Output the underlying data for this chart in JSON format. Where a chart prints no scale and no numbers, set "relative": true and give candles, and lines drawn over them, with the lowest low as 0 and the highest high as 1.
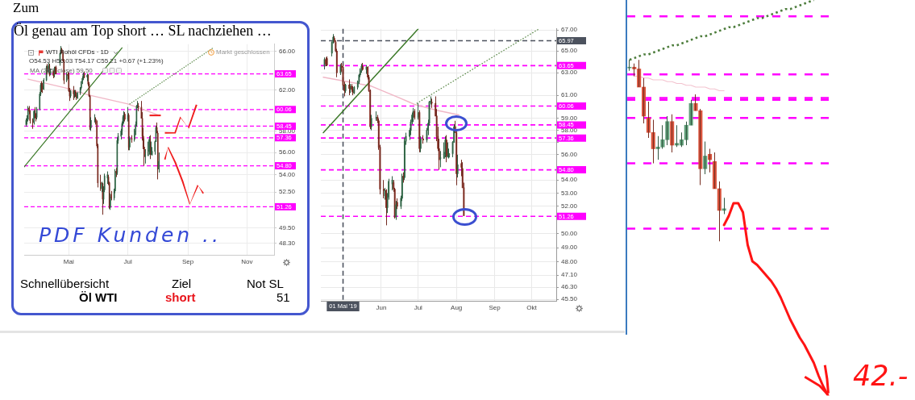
{
  "chart_data": [
    {
      "type": "candlestick",
      "title": "Öl genau am Top short … SL nachziehen …",
      "subtitle": "WTI Rohöl CFDs · 1D",
      "x": [
        "2019-03-18",
        "2019-03-19",
        "2019-03-20",
        "2019-03-21",
        "2019-03-22",
        "2019-03-25",
        "2019-03-26",
        "2019-03-27",
        "2019-03-28",
        "2019-03-29",
        "2019-04-01",
        "2019-04-02",
        "2019-04-03",
        "2019-04-04",
        "2019-04-05",
        "2019-04-08",
        "2019-04-09",
        "2019-04-10",
        "2019-04-11",
        "2019-04-12",
        "2019-04-15",
        "2019-04-16",
        "2019-04-17",
        "2019-04-18",
        "2019-04-22",
        "2019-04-23",
        "2019-04-24",
        "2019-04-25",
        "2019-04-26",
        "2019-04-29",
        "2019-04-30",
        "2019-05-01",
        "2019-05-02",
        "2019-05-03",
        "2019-05-06",
        "2019-05-07",
        "2019-05-08",
        "2019-05-09",
        "2019-05-10",
        "2019-05-13",
        "2019-05-14",
        "2019-05-15",
        "2019-05-16",
        "2019-05-17",
        "2019-05-20",
        "2019-05-21",
        "2019-05-22",
        "2019-05-23",
        "2019-05-24",
        "2019-05-28",
        "2019-05-29",
        "2019-05-30",
        "2019-05-31",
        "2019-06-03",
        "2019-06-04",
        "2019-06-05",
        "2019-06-06",
        "2019-06-07",
        "2019-06-10",
        "2019-06-11",
        "2019-06-12",
        "2019-06-13",
        "2019-06-14",
        "2019-06-17",
        "2019-06-18",
        "2019-06-19",
        "2019-06-20",
        "2019-06-21",
        "2019-06-24",
        "2019-06-25",
        "2019-06-26",
        "2019-06-27",
        "2019-06-28",
        "2019-07-01",
        "2019-07-02",
        "2019-07-03",
        "2019-07-05",
        "2019-07-08",
        "2019-07-09",
        "2019-07-10",
        "2019-07-11",
        "2019-07-12",
        "2019-07-15",
        "2019-07-16",
        "2019-07-17",
        "2019-07-18",
        "2019-07-19",
        "2019-07-22",
        "2019-07-23",
        "2019-07-24",
        "2019-07-25",
        "2019-07-26",
        "2019-07-29",
        "2019-07-30",
        "2019-07-31",
        "2019-08-01",
        "2019-08-02"
      ],
      "ohlc": [
        [
          58.6,
          59.2,
          58.4,
          59.0
        ],
        [
          59.0,
          59.5,
          58.6,
          59.1
        ],
        [
          59.1,
          60.4,
          58.9,
          60.2
        ],
        [
          60.2,
          60.4,
          59.6,
          59.9
        ],
        [
          59.9,
          60.0,
          58.7,
          59.0
        ],
        [
          59.0,
          59.2,
          58.2,
          58.8
        ],
        [
          58.8,
          60.0,
          58.6,
          59.9
        ],
        [
          59.9,
          60.3,
          59.2,
          59.4
        ],
        [
          59.4,
          59.7,
          58.9,
          59.3
        ],
        [
          59.3,
          60.3,
          59.1,
          60.1
        ],
        [
          60.1,
          61.8,
          60.0,
          61.6
        ],
        [
          61.6,
          62.7,
          61.4,
          62.5
        ],
        [
          62.5,
          62.9,
          61.8,
          62.4
        ],
        [
          62.4,
          62.7,
          61.7,
          62.1
        ],
        [
          62.1,
          63.2,
          62.0,
          63.0
        ],
        [
          63.0,
          64.5,
          62.9,
          64.3
        ],
        [
          64.3,
          64.7,
          63.6,
          63.9
        ],
        [
          63.9,
          64.8,
          63.7,
          64.5
        ],
        [
          64.5,
          64.7,
          63.4,
          63.6
        ],
        [
          63.6,
          64.2,
          63.5,
          63.9
        ],
        [
          63.9,
          64.0,
          63.2,
          63.5
        ],
        [
          63.6,
          64.4,
          63.3,
          64.2
        ],
        [
          64.2,
          64.4,
          63.6,
          63.8
        ],
        [
          64.3,
          64.5,
          63.6,
          63.7
        ],
        [
          64.8,
          65.9,
          64.5,
          65.8
        ],
        [
          65.8,
          66.6,
          65.7,
          66.3
        ],
        [
          66.2,
          66.4,
          65.8,
          65.9
        ],
        [
          65.8,
          66.0,
          64.9,
          65.0
        ],
        [
          65.0,
          65.2,
          62.6,
          63.0
        ],
        [
          63.0,
          63.8,
          62.8,
          63.6
        ],
        [
          63.6,
          63.9,
          63.1,
          63.5
        ],
        [
          63.5,
          63.8,
          61.8,
          61.9
        ],
        [
          61.9,
          62.2,
          60.9,
          61.4
        ],
        [
          61.4,
          62.0,
          61.2,
          61.9
        ],
        [
          61.9,
          62.4,
          61.0,
          61.6
        ],
        [
          61.6,
          62.0,
          61.2,
          61.8
        ],
        [
          61.8,
          62.0,
          61.3,
          61.5
        ],
        [
          61.5,
          61.8,
          61.0,
          61.2
        ],
        [
          61.2,
          61.8,
          61.1,
          61.7
        ],
        [
          61.7,
          62.3,
          61.5,
          62.2
        ],
        [
          62.2,
          62.9,
          62.0,
          62.8
        ],
        [
          62.8,
          63.4,
          62.6,
          63.2
        ],
        [
          63.2,
          63.8,
          63.0,
          63.6
        ],
        [
          63.6,
          63.9,
          63.2,
          63.3
        ],
        [
          63.3,
          63.7,
          62.9,
          63.5
        ],
        [
          63.5,
          63.6,
          62.4,
          62.6
        ],
        [
          62.6,
          62.8,
          61.3,
          61.4
        ],
        [
          61.4,
          61.5,
          58.1,
          58.3
        ],
        [
          58.3,
          59.3,
          58.0,
          59.0
        ],
        [
          59.0,
          59.6,
          58.8,
          59.1
        ],
        [
          59.1,
          59.3,
          58.6,
          58.8
        ],
        [
          58.8,
          59.0,
          56.4,
          56.6
        ],
        [
          56.6,
          56.8,
          52.9,
          53.3
        ],
        [
          53.3,
          54.0,
          52.6,
          53.2
        ],
        [
          52.8,
          53.4,
          52.5,
          53.2
        ],
        [
          53.2,
          53.3,
          50.6,
          51.9
        ],
        [
          51.9,
          53.0,
          51.5,
          52.7
        ],
        [
          52.7,
          54.1,
          52.5,
          53.9
        ],
        [
          53.7,
          54.3,
          53.2,
          54.0
        ],
        [
          53.8,
          54.0,
          53.1,
          53.3
        ],
        [
          53.3,
          53.4,
          51.1,
          51.2
        ],
        [
          51.2,
          52.4,
          51.0,
          52.1
        ],
        [
          52.3,
          52.6,
          51.8,
          52.0
        ],
        [
          52.0,
          52.8,
          51.8,
          52.6
        ],
        [
          52.6,
          54.5,
          52.4,
          54.3
        ],
        [
          54.3,
          54.6,
          53.8,
          54.2
        ],
        [
          54.2,
          57.4,
          54.0,
          57.1
        ],
        [
          57.1,
          57.8,
          56.8,
          57.5
        ],
        [
          57.5,
          58.2,
          57.2,
          58.0
        ],
        [
          58.0,
          58.9,
          57.6,
          58.7
        ],
        [
          58.7,
          59.5,
          58.5,
          59.3
        ],
        [
          59.1,
          59.9,
          58.7,
          59.6
        ],
        [
          59.6,
          59.8,
          58.9,
          59.1
        ],
        [
          59.1,
          60.3,
          58.9,
          59.5
        ],
        [
          59.5,
          59.7,
          56.2,
          56.5
        ],
        [
          56.5,
          57.5,
          56.2,
          57.3
        ],
        [
          57.3,
          57.6,
          56.9,
          57.2
        ],
        [
          57.2,
          58.2,
          57.0,
          58.0
        ],
        [
          58.0,
          58.9,
          57.6,
          58.6
        ],
        [
          58.6,
          60.5,
          58.4,
          60.4
        ],
        [
          60.4,
          60.9,
          60.2,
          60.4
        ],
        [
          60.4,
          60.7,
          59.9,
          60.3
        ],
        [
          60.3,
          60.9,
          59.2,
          59.2
        ],
        [
          59.2,
          59.8,
          57.1,
          57.5
        ],
        [
          57.5,
          58.3,
          56.3,
          56.5
        ],
        [
          56.5,
          57.3,
          54.8,
          55.6
        ],
        [
          55.7,
          56.3,
          55.0,
          55.7
        ],
        [
          55.7,
          57.0,
          55.7,
          56.2
        ],
        [
          56.1,
          57.5,
          55.8,
          57.2
        ],
        [
          57.2,
          57.6,
          55.4,
          55.9
        ],
        [
          55.8,
          57.0,
          55.8,
          55.9
        ],
        [
          55.8,
          56.5,
          55.7,
          56.1
        ],
        [
          56.1,
          57.1,
          55.8,
          57.0
        ],
        [
          57.0,
          58.5,
          57.0,
          58.3
        ],
        [
          58.3,
          58.8,
          57.8,
          57.8
        ],
        [
          57.8,
          58.0,
          53.6,
          54.5
        ],
        [
          54.5,
          56.0,
          54.2,
          55.2
        ]
      ],
      "colors": [
        "#3b7552",
        "#3b7552",
        "#3b7552",
        "#8e3428",
        "#8e3428",
        "#8e3428",
        "#3b7552",
        "#8e3428",
        "#8e3428",
        "#3b7552",
        "#3b7552",
        "#3b7552",
        "#8e3428",
        "#8e3428",
        "#3b7552",
        "#3b7552",
        "#8e3428",
        "#3b7552",
        "#8e3428",
        "#3b7552",
        "#8e3428",
        "#3b7552",
        "#8e3428",
        "#8e3428",
        "#3b7552",
        "#3b7552",
        "#8e3428",
        "#8e3428",
        "#8e3428",
        "#3b7552",
        "#8e3428",
        "#8e3428",
        "#8e3428",
        "#3b7552",
        "#8e3428",
        "#3b7552",
        "#8e3428",
        "#8e3428",
        "#3b7552",
        "#3b7552",
        "#3b7552",
        "#3b7552",
        "#3b7552",
        "#8e3428",
        "#3b7552",
        "#8e3428",
        "#8e3428",
        "#8e3428",
        "#3b7552",
        "#3b7552",
        "#8e3428",
        "#8e3428",
        "#8e3428",
        "#8e3428",
        "#3b7552",
        "#8e3428",
        "#3b7552",
        "#3b7552",
        "#3b7552",
        "#8e3428",
        "#8e3428",
        "#3b7552",
        "#8e3428",
        "#3b7552",
        "#3b7552",
        "#8e3428",
        "#3b7552",
        "#3b7552",
        "#3b7552",
        "#3b7552",
        "#3b7552",
        "#3b7552",
        "#8e3428",
        "#3b7552",
        "#8e3428",
        "#3b7552",
        "#8e3428",
        "#3b7552",
        "#3b7552",
        "#3b7552",
        "#3b7552",
        "#8e3428",
        "#8e3428",
        "#8e3428",
        "#8e3428",
        "#8e3428",
        "#3b7552",
        "#3b7552",
        "#3b7552",
        "#8e3428",
        "#3b7552",
        "#3b7552",
        "#3b7552",
        "#3b7552",
        "#8e3428",
        "#8e3428",
        "#3b7552"
      ],
      "series": [
        {
          "type": "line",
          "color": "#3d7a2a",
          "x": [
            "2019-03-16",
            "2019-06-25"
          ],
          "values": [
            54.7,
            66.4
          ]
        },
        {
          "type": "line",
          "color": "#5c8a4a",
          "line_style": "dotted",
          "x": [
            "2019-07-03",
            "2019-09-27"
          ],
          "values": [
            60.6,
            66.4
          ]
        },
        {
          "type": "line",
          "color": "#f0b7c6",
          "x": [
            "2019-03-20",
            "2019-04-28",
            "2019-05-21",
            "2019-07-01",
            "2019-08-02"
          ],
          "values": [
            63.1,
            62.2,
            61.5,
            60.6,
            59.5
          ]
        }
      ],
      "ref_lines": [
        {
          "axis": "y",
          "value": 63.65,
          "label": "63.65",
          "color": "#ff00ff",
          "line_style": "dashed"
        },
        {
          "axis": "y",
          "value": 60.06,
          "label": "60.06",
          "color": "#ff00ff",
          "line_style": "dashed"
        },
        {
          "axis": "y",
          "value": 58.45,
          "label": "58.45",
          "color": "#ff00ff",
          "line_style": "dashed"
        },
        {
          "axis": "y",
          "value": 57.36,
          "label": "57.36",
          "color": "#ff00ff",
          "line_style": "dashed"
        },
        {
          "axis": "y",
          "value": 54.8,
          "label": "54.80",
          "color": "#ff00ff",
          "line_style": "dashed"
        },
        {
          "axis": "y",
          "value": 51.26,
          "label": "51.26",
          "color": "#ff00ff",
          "line_style": "dashed"
        }
      ],
      "log": "y",
      "ylim": [
        47.4,
        66.8
      ],
      "yticks": [
        {
          "value": 66,
          "label": "66.00"
        },
        {
          "value": 62,
          "label": "62.00"
        },
        {
          "value": 58,
          "label": "58.00"
        },
        {
          "value": 56,
          "label": "56.00"
        },
        {
          "value": 54,
          "label": "54.00"
        },
        {
          "value": 52.5,
          "label": "52.50"
        },
        {
          "value": 49.5,
          "label": "49.50"
        },
        {
          "value": 48.3,
          "label": "48.30"
        }
      ],
      "xlim": [
        "2019-03-16",
        "2019-11-29"
      ],
      "xticks": [
        {
          "value": "2019-05-01",
          "label": "Mai"
        },
        {
          "value": "2019-07-01",
          "label": "Jul"
        },
        {
          "value": "2019-09-01",
          "label": "Sep"
        },
        {
          "value": "2019-11-01",
          "label": "Nov"
        }
      ],
      "grid": true,
      "annotations": [
        "Zum",
        "O54.53 H56.03 T54.17 C55.21 +0.67 (+1.23%)",
        "MA (255, close) 59.50",
        "Markt geschlossen",
        "PDF Kunden ..",
        "Schnellübersicht",
        "Ziel",
        "Not SL",
        "Öl WTI",
        "short",
        "51"
      ]
    },
    {
      "type": "candlestick",
      "x": [
        "2019-04-16",
        "2019-04-17",
        "2019-04-18",
        "2019-04-22",
        "2019-04-23",
        "2019-04-24",
        "2019-04-25",
        "2019-04-26",
        "2019-04-29",
        "2019-04-30",
        "2019-05-01",
        "2019-05-02",
        "2019-05-03",
        "2019-05-06",
        "2019-05-07",
        "2019-05-08",
        "2019-05-09",
        "2019-05-10",
        "2019-05-13",
        "2019-05-14",
        "2019-05-15",
        "2019-05-16",
        "2019-05-17",
        "2019-05-20",
        "2019-05-21",
        "2019-05-22",
        "2019-05-23",
        "2019-05-24",
        "2019-05-28",
        "2019-05-29",
        "2019-05-30",
        "2019-05-31",
        "2019-06-03",
        "2019-06-04",
        "2019-06-05",
        "2019-06-06",
        "2019-06-07",
        "2019-06-10",
        "2019-06-11",
        "2019-06-12",
        "2019-06-13",
        "2019-06-14",
        "2019-06-17",
        "2019-06-18",
        "2019-06-19",
        "2019-06-20",
        "2019-06-21",
        "2019-06-24",
        "2019-06-25",
        "2019-06-26",
        "2019-06-27",
        "2019-06-28",
        "2019-07-01",
        "2019-07-02",
        "2019-07-03",
        "2019-07-05",
        "2019-07-08",
        "2019-07-09",
        "2019-07-10",
        "2019-07-11",
        "2019-07-12",
        "2019-07-15",
        "2019-07-16",
        "2019-07-17",
        "2019-07-18",
        "2019-07-19",
        "2019-07-22",
        "2019-07-23",
        "2019-07-24",
        "2019-07-25",
        "2019-07-26",
        "2019-07-29",
        "2019-07-30",
        "2019-07-31",
        "2019-08-01",
        "2019-08-02",
        "2019-08-05",
        "2019-08-06",
        "2019-08-07"
      ],
      "ohlc": [
        [
          63.6,
          64.4,
          63.3,
          64.2
        ],
        [
          64.2,
          64.4,
          63.6,
          63.8
        ],
        [
          64.3,
          64.5,
          63.6,
          63.7
        ],
        [
          64.8,
          65.9,
          64.5,
          65.8
        ],
        [
          65.8,
          66.6,
          65.7,
          66.3
        ],
        [
          66.2,
          66.4,
          65.8,
          65.9
        ],
        [
          65.8,
          66.0,
          64.9,
          65.0
        ],
        [
          65.0,
          65.2,
          62.6,
          63.0
        ],
        [
          63.0,
          63.8,
          62.8,
          63.6
        ],
        [
          63.6,
          63.9,
          63.1,
          63.5
        ],
        [
          63.5,
          63.8,
          61.8,
          61.9
        ],
        [
          61.9,
          62.2,
          60.9,
          61.4
        ],
        [
          61.4,
          62.0,
          61.2,
          61.9
        ],
        [
          61.9,
          62.4,
          61.0,
          61.6
        ],
        [
          61.6,
          62.0,
          61.2,
          61.8
        ],
        [
          61.8,
          62.0,
          61.3,
          61.5
        ],
        [
          61.5,
          61.8,
          61.0,
          61.2
        ],
        [
          61.2,
          61.8,
          61.1,
          61.7
        ],
        [
          61.7,
          62.3,
          61.5,
          62.2
        ],
        [
          62.2,
          62.9,
          62.0,
          62.8
        ],
        [
          62.8,
          63.4,
          62.6,
          63.2
        ],
        [
          63.2,
          63.8,
          63.0,
          63.6
        ],
        [
          63.6,
          63.9,
          63.2,
          63.3
        ],
        [
          63.3,
          63.7,
          62.9,
          63.5
        ],
        [
          63.5,
          63.6,
          62.4,
          62.6
        ],
        [
          62.6,
          62.8,
          61.3,
          61.4
        ],
        [
          61.4,
          61.5,
          58.1,
          58.3
        ],
        [
          58.3,
          59.3,
          58.0,
          59.0
        ],
        [
          59.0,
          59.6,
          58.8,
          59.1
        ],
        [
          59.1,
          59.3,
          58.6,
          58.8
        ],
        [
          58.8,
          59.0,
          56.4,
          56.6
        ],
        [
          56.6,
          56.8,
          52.9,
          53.3
        ],
        [
          53.3,
          54.0,
          52.6,
          53.2
        ],
        [
          52.8,
          53.4,
          52.5,
          53.2
        ],
        [
          53.2,
          53.3,
          50.6,
          51.9
        ],
        [
          51.9,
          53.0,
          51.5,
          52.7
        ],
        [
          52.7,
          54.1,
          52.5,
          53.9
        ],
        [
          53.7,
          54.3,
          53.2,
          54.0
        ],
        [
          53.8,
          54.0,
          53.1,
          53.3
        ],
        [
          53.3,
          53.4,
          51.1,
          51.2
        ],
        [
          51.2,
          52.4,
          51.0,
          52.1
        ],
        [
          52.3,
          52.6,
          51.8,
          52.0
        ],
        [
          52.0,
          52.8,
          51.8,
          52.6
        ],
        [
          52.6,
          54.5,
          52.4,
          54.3
        ],
        [
          54.3,
          54.6,
          53.8,
          54.2
        ],
        [
          54.2,
          57.4,
          54.0,
          57.1
        ],
        [
          57.1,
          57.8,
          56.8,
          57.5
        ],
        [
          57.5,
          58.2,
          57.2,
          58.0
        ],
        [
          58.0,
          58.9,
          57.6,
          58.7
        ],
        [
          58.7,
          59.5,
          58.5,
          59.3
        ],
        [
          59.1,
          59.9,
          58.7,
          59.6
        ],
        [
          59.6,
          59.8,
          58.9,
          59.1
        ],
        [
          59.1,
          60.3,
          58.9,
          59.5
        ],
        [
          59.5,
          59.7,
          56.2,
          56.5
        ],
        [
          56.5,
          57.5,
          56.2,
          57.3
        ],
        [
          57.3,
          57.6,
          56.9,
          57.2
        ],
        [
          57.2,
          58.2,
          57.0,
          58.0
        ],
        [
          58.0,
          58.9,
          57.6,
          58.6
        ],
        [
          58.6,
          60.5,
          58.4,
          60.4
        ],
        [
          60.4,
          60.9,
          60.2,
          60.4
        ],
        [
          60.4,
          60.7,
          59.9,
          60.3
        ],
        [
          60.3,
          60.9,
          59.2,
          59.2
        ],
        [
          59.2,
          59.8,
          57.1,
          57.5
        ],
        [
          57.5,
          58.3,
          56.3,
          56.5
        ],
        [
          56.5,
          57.3,
          54.8,
          55.6
        ],
        [
          55.7,
          56.3,
          55.0,
          55.7
        ],
        [
          55.7,
          57.0,
          55.7,
          56.2
        ],
        [
          56.1,
          57.5,
          55.8,
          57.2
        ],
        [
          57.2,
          57.6,
          55.4,
          55.9
        ],
        [
          55.8,
          57.0,
          55.8,
          55.9
        ],
        [
          55.8,
          56.5,
          55.7,
          56.1
        ],
        [
          56.1,
          57.1,
          55.8,
          57.0
        ],
        [
          57.0,
          58.5,
          57.0,
          58.3
        ],
        [
          58.3,
          58.8,
          57.8,
          57.8
        ],
        [
          57.8,
          58.0,
          53.6,
          54.5
        ],
        [
          54.5,
          56.0,
          54.2,
          55.2
        ],
        [
          55.3,
          55.6,
          54.3,
          55.0
        ],
        [
          54.9,
          55.4,
          53.4,
          53.4
        ],
        [
          53.4,
          53.8,
          51.3,
          51.3
        ]
      ],
      "colors": [
        "#3b7552",
        "#8e3428",
        "#8e3428",
        "#3b7552",
        "#3b7552",
        "#8e3428",
        "#8e3428",
        "#8e3428",
        "#3b7552",
        "#8e3428",
        "#8e3428",
        "#8e3428",
        "#3b7552",
        "#8e3428",
        "#3b7552",
        "#8e3428",
        "#8e3428",
        "#3b7552",
        "#3b7552",
        "#3b7552",
        "#3b7552",
        "#3b7552",
        "#8e3428",
        "#3b7552",
        "#8e3428",
        "#8e3428",
        "#8e3428",
        "#3b7552",
        "#3b7552",
        "#8e3428",
        "#8e3428",
        "#8e3428",
        "#8e3428",
        "#3b7552",
        "#8e3428",
        "#3b7552",
        "#3b7552",
        "#3b7552",
        "#8e3428",
        "#8e3428",
        "#3b7552",
        "#8e3428",
        "#3b7552",
        "#3b7552",
        "#8e3428",
        "#3b7552",
        "#3b7552",
        "#3b7552",
        "#3b7552",
        "#3b7552",
        "#3b7552",
        "#8e3428",
        "#3b7552",
        "#8e3428",
        "#3b7552",
        "#8e3428",
        "#3b7552",
        "#3b7552",
        "#3b7552",
        "#3b7552",
        "#8e3428",
        "#8e3428",
        "#8e3428",
        "#8e3428",
        "#8e3428",
        "#3b7552",
        "#3b7552",
        "#3b7552",
        "#8e3428",
        "#3b7552",
        "#3b7552",
        "#3b7552",
        "#3b7552",
        "#8e3428",
        "#8e3428",
        "#3b7552",
        "#8e3428",
        "#8e3428",
        "#8e3428"
      ],
      "series": [
        {
          "type": "line",
          "color": "#3d7a2a",
          "x": [
            "2019-04-15",
            "2019-07-01"
          ],
          "values": [
            57.8,
            67.1
          ]
        },
        {
          "type": "line",
          "color": "#5c8a4a",
          "line_style": "dotted",
          "x": [
            "2019-06-30",
            "2019-10-07"
          ],
          "values": [
            60.3,
            67.1
          ]
        },
        {
          "type": "line",
          "color": "#f0b7c6",
          "x": [
            "2019-04-15",
            "2019-05-24",
            "2019-06-15",
            "2019-06-28",
            "2019-07-16",
            "2019-08-03"
          ],
          "values": [
            62.6,
            61.8,
            60.8,
            60.2,
            59.7,
            59.3
          ]
        }
      ],
      "ref_lines": [
        {
          "axis": "y",
          "value": 63.65,
          "label": "63.65",
          "color": "#ff00ff",
          "line_style": "dashed"
        },
        {
          "axis": "y",
          "value": 60.06,
          "label": "60.06",
          "color": "#ff00ff",
          "line_style": "dashed"
        },
        {
          "axis": "y",
          "value": 58.45,
          "label": "58.45",
          "color": "#ff00ff",
          "line_style": "dashed"
        },
        {
          "axis": "y",
          "value": 57.36,
          "label": "57.36",
          "color": "#ff00ff",
          "line_style": "dashed"
        },
        {
          "axis": "y",
          "value": 54.8,
          "label": "54.80",
          "color": "#ff00ff",
          "line_style": "dashed"
        },
        {
          "axis": "y",
          "value": 51.26,
          "label": "51.26",
          "color": "#ff00ff",
          "line_style": "dashed"
        },
        {
          "axis": "y",
          "value": 65.97,
          "label": "65.97",
          "color": "#4c525e",
          "line_style": "dashed"
        },
        {
          "axis": "x",
          "value": "2019-05-01",
          "label": "01 Mai '19",
          "color": "#4c525e",
          "line_style": "dashed"
        }
      ],
      "log": "y",
      "ylim": [
        45.4,
        67.1
      ],
      "yticks": [
        {
          "value": 67,
          "label": "67.00"
        },
        {
          "value": 65,
          "label": "65.00"
        },
        {
          "value": 63,
          "label": "63.00"
        },
        {
          "value": 61,
          "label": "61.00"
        },
        {
          "value": 59,
          "label": "59.00"
        },
        {
          "value": 58,
          "label": "58.00"
        },
        {
          "value": 57,
          "label": null
        },
        {
          "value": 56,
          "label": "56.00"
        },
        {
          "value": 54,
          "label": "54.00"
        },
        {
          "value": 53,
          "label": "53.00"
        },
        {
          "value": 52,
          "label": "52.00"
        },
        {
          "value": 50,
          "label": "50.00"
        },
        {
          "value": 49,
          "label": "49.00"
        },
        {
          "value": 48,
          "label": "48.00"
        },
        {
          "value": 47.1,
          "label": "47.10"
        },
        {
          "value": 46.3,
          "label": "46.30"
        },
        {
          "value": 45.5,
          "label": "45.50"
        }
      ],
      "xlim": [
        "2019-04-13",
        "2019-10-21"
      ],
      "xticks": [
        {
          "value": "2019-06-01",
          "label": "Jun"
        },
        {
          "value": "2019-07-01",
          "label": "Jul"
        },
        {
          "value": "2019-08-01",
          "label": "Aug"
        },
        {
          "value": "2019-09-01",
          "label": "Sep"
        },
        {
          "value": "2019-10-01",
          "label": "Okt"
        }
      ],
      "grid": true
    },
    {
      "type": "candlestick",
      "relative": true,
      "categories": [
        null,
        null,
        null,
        null,
        null,
        null,
        null,
        null,
        null,
        null,
        null,
        null,
        null,
        null,
        null,
        null,
        null,
        null,
        null,
        null,
        null,
        null,
        null,
        null,
        null,
        null,
        null,
        null,
        null,
        null,
        null,
        null,
        null,
        null,
        null,
        null,
        null,
        null,
        null,
        null,
        null,
        null,
        null
      ],
      "ohlc": [
        [
          0.96,
          1.0,
          0.94,
          0.96
        ],
        [
          0.96,
          0.98,
          0.91,
          0.95
        ],
        [
          0.95,
          1.0,
          0.85,
          0.85
        ],
        [
          0.85,
          0.9,
          0.65,
          0.69
        ],
        [
          0.68,
          0.77,
          0.57,
          0.6
        ],
        [
          0.6,
          0.67,
          0.43,
          0.51
        ],
        [
          0.51,
          0.58,
          0.45,
          0.52
        ],
        [
          0.52,
          0.64,
          0.51,
          0.56
        ],
        [
          0.56,
          0.69,
          0.53,
          0.66
        ],
        [
          0.66,
          0.7,
          0.49,
          0.53
        ],
        [
          0.53,
          0.64,
          0.52,
          0.54
        ],
        [
          0.53,
          0.6,
          0.52,
          0.56
        ],
        [
          0.56,
          0.66,
          0.53,
          0.64
        ],
        [
          0.64,
          0.78,
          0.64,
          0.76
        ],
        [
          0.76,
          0.81,
          0.72,
          0.72
        ],
        [
          0.72,
          0.73,
          0.31,
          0.4
        ],
        [
          0.4,
          0.55,
          0.37,
          0.47
        ],
        [
          0.48,
          0.51,
          0.38,
          0.45
        ],
        [
          0.44,
          0.49,
          0.29,
          0.29
        ],
        [
          0.29,
          0.33,
          0.0,
          0.17
        ],
        [
          0.17,
          0.24,
          0.15,
          0.18
        ],
        null,
        null,
        null,
        null,
        null,
        null,
        null,
        null,
        null,
        null,
        null,
        null,
        null,
        null,
        null,
        null,
        null,
        null,
        null,
        null,
        null,
        null
      ],
      "colors": [
        "#5f9e78",
        "#d9533c",
        "#d9533c",
        "#d9533c",
        "#d9533c",
        "#d9533c",
        "#5f9e78",
        "#5f9e78",
        "#5f9e78",
        "#d9533c",
        "#5f9e78",
        "#5f9e78",
        "#5f9e78",
        "#5f9e78",
        "#d9533c",
        "#d9533c",
        "#5f9e78",
        "#d9533c",
        "#d9533c",
        "#d9533c",
        "#5f9e78",
        null,
        null,
        null,
        null,
        null,
        null,
        null,
        null,
        null,
        null,
        null,
        null,
        null,
        null,
        null,
        null,
        null,
        null,
        null,
        null,
        null,
        null
      ],
      "series": [
        {
          "type": "line",
          "color": "#4d7d3c",
          "line_style": "dotted",
          "values": [
            1.0,
            1.01,
            1.02,
            1.03,
            1.03,
            1.04,
            1.05,
            1.06,
            1.07,
            1.08,
            1.08,
            1.09,
            1.1,
            1.11,
            1.12,
            1.13,
            1.13,
            1.14,
            1.15,
            1.16,
            1.17,
            1.18,
            1.18,
            1.19,
            1.2,
            1.21,
            1.22,
            1.23,
            1.23,
            1.24,
            1.25,
            1.26,
            1.27,
            1.28,
            1.28,
            1.29,
            1.3,
            1.31,
            1.32,
            1.33,
            null,
            null,
            null
          ]
        },
        {
          "type": "line",
          "color": "#f3c3cf",
          "values": [
            null,
            0.91,
            0.91,
            0.9,
            0.9,
            0.89,
            0.89,
            0.89,
            0.88,
            0.88,
            0.87,
            0.87,
            0.86,
            0.86,
            0.85,
            0.85,
            0.85,
            0.84,
            0.84,
            0.83,
            0.83,
            null,
            null,
            null,
            null,
            null,
            null,
            null,
            null,
            null,
            null,
            null,
            null,
            null,
            null,
            null,
            null,
            null,
            null,
            null,
            null,
            null,
            null
          ]
        },
        {
          "type": "line",
          "color": "#ff1414",
          "values": [
            null,
            null,
            null,
            null,
            null,
            null,
            null,
            null,
            null,
            null,
            null,
            null,
            null,
            null,
            null,
            null,
            null,
            null,
            null,
            null,
            0.09,
            0.14,
            0.21,
            0.21,
            0.16,
            -0.02,
            -0.11,
            -0.13,
            -0.16,
            -0.19,
            -0.22,
            -0.26,
            -0.31,
            -0.37,
            -0.43,
            -0.48,
            -0.53,
            -0.57,
            -0.62,
            -0.67,
            -0.74,
            -0.8,
            -0.85
          ]
        }
      ],
      "ref_lines": [
        {
          "axis": "y",
          "value": 1.24,
          "color": "#ff00ff",
          "line_style": "dashed"
        },
        {
          "axis": "y",
          "value": 0.92,
          "color": "#ff00ff",
          "line_style": "dashed"
        },
        {
          "axis": "y",
          "value": 0.79,
          "color": "#ff00ff",
          "line_style": "dashed"
        },
        {
          "axis": "y",
          "value": 0.78,
          "color": "#ff00ff",
          "line_style": "dashed"
        },
        {
          "axis": "y",
          "value": 0.68,
          "color": "#ff00ff",
          "line_style": "dashed"
        },
        {
          "axis": "y",
          "value": 0.43,
          "color": "#ff00ff",
          "line_style": "dashed"
        },
        {
          "axis": "y",
          "value": 0.07,
          "color": "#ff00ff",
          "line_style": "dashed"
        }
      ],
      "annotations": [
        "42.-"
      ]
    }
  ]
}
